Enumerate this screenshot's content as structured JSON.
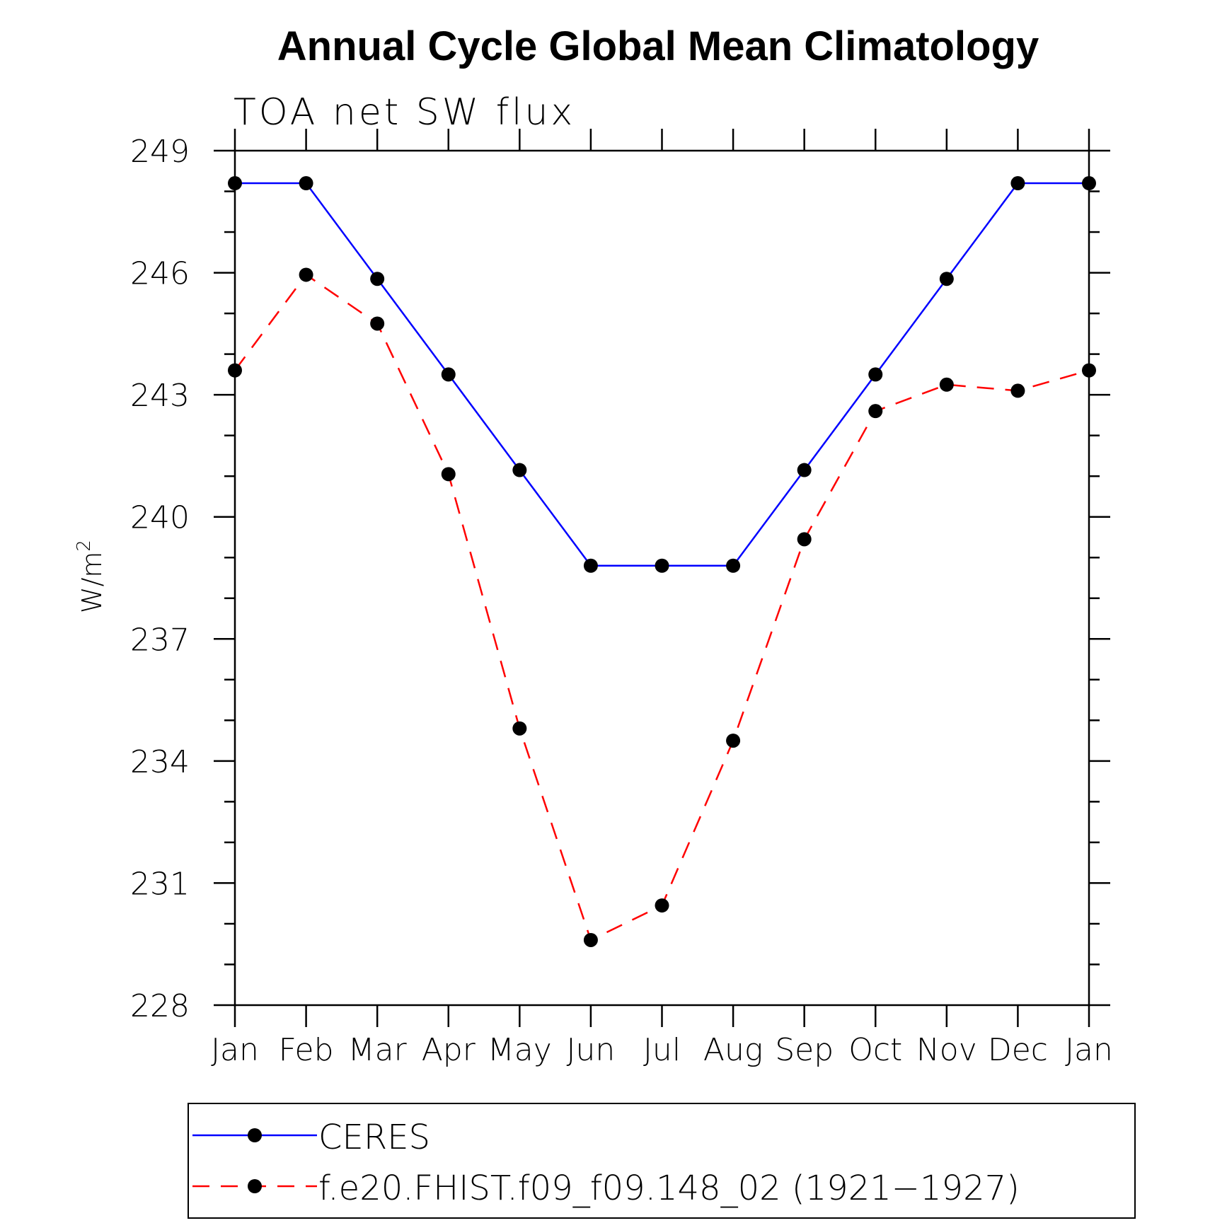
{
  "chart_data": {
    "type": "line",
    "title": "Annual Cycle Global Mean Climatology",
    "subtitle": "TOA net SW flux",
    "ylabel_base": "W/m",
    "ylabel_exp": "2",
    "ylim": [
      228,
      249
    ],
    "yticks": [
      "249",
      "246",
      "243",
      "240",
      "237",
      "234",
      "231",
      "228"
    ],
    "ytick_values": [
      249,
      246,
      243,
      240,
      237,
      234,
      231,
      228
    ],
    "x": [
      "Jan",
      "Feb",
      "Mar",
      "Apr",
      "May",
      "Jun",
      "Jul",
      "Aug",
      "Sep",
      "Oct",
      "Nov",
      "Dec",
      "Jan"
    ],
    "series": [
      {
        "name": "CERES",
        "color": "#0000ff",
        "dash": "solid",
        "values": [
          248.2,
          248.2,
          245.85,
          243.5,
          241.15,
          238.8,
          238.8,
          238.8,
          241.15,
          243.5,
          245.85,
          248.2,
          248.2
        ]
      },
      {
        "name": "f.e20.FHIST.f09_f09.148_02 (1921−1927)",
        "color": "#ff0000",
        "dash": "dashed",
        "values": [
          243.6,
          245.95,
          244.75,
          241.05,
          234.8,
          229.6,
          230.45,
          234.5,
          239.45,
          242.6,
          243.25,
          243.1,
          243.6
        ]
      }
    ],
    "marker_color": "#000000",
    "legend_placement": "bottom"
  }
}
